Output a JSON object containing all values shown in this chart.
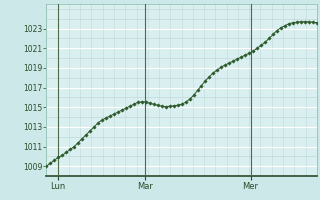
{
  "bg_color": "#cce8e8",
  "plot_bg_color": "#daf0f0",
  "grid_color_major": "#ffffff",
  "grid_color_minor": "#c0d8d8",
  "line_color": "#2d5a2d",
  "marker_color": "#2d5a2d",
  "x_tick_labels": [
    "Lun",
    "Mar",
    "Mer"
  ],
  "x_tick_positions": [
    0.042,
    0.365,
    0.755
  ],
  "ylim": [
    1008.0,
    1025.5
  ],
  "yticks": [
    1009,
    1011,
    1013,
    1015,
    1017,
    1019,
    1021,
    1023
  ],
  "pressure_values": [
    1009.0,
    1009.3,
    1009.6,
    1009.9,
    1010.1,
    1010.4,
    1010.7,
    1011.0,
    1011.4,
    1011.8,
    1012.2,
    1012.6,
    1013.0,
    1013.4,
    1013.7,
    1013.9,
    1014.1,
    1014.3,
    1014.5,
    1014.7,
    1014.9,
    1015.1,
    1015.3,
    1015.5,
    1015.55,
    1015.55,
    1015.4,
    1015.3,
    1015.2,
    1015.1,
    1015.05,
    1015.1,
    1015.15,
    1015.2,
    1015.3,
    1015.5,
    1015.8,
    1016.2,
    1016.7,
    1017.2,
    1017.7,
    1018.1,
    1018.5,
    1018.8,
    1019.1,
    1019.3,
    1019.5,
    1019.7,
    1019.9,
    1020.1,
    1020.3,
    1020.5,
    1020.7,
    1021.0,
    1021.3,
    1021.6,
    1022.0,
    1022.4,
    1022.8,
    1023.1,
    1023.3,
    1023.5,
    1023.6,
    1023.65,
    1023.7,
    1023.7,
    1023.7,
    1023.65,
    1023.6
  ]
}
